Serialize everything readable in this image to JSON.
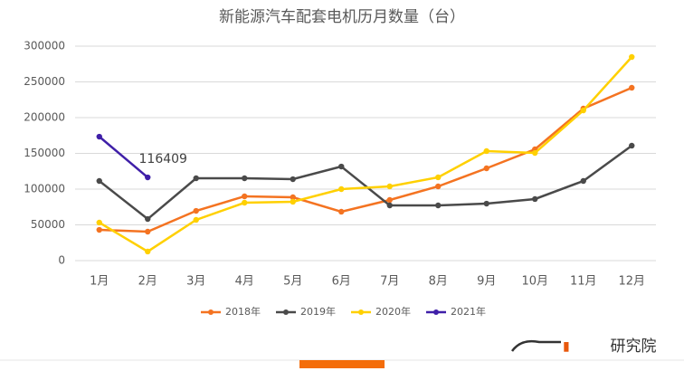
{
  "chart_data": {
    "type": "line",
    "title": "新能源汽车配套电机历月数量（台）",
    "categories": [
      "1月",
      "2月",
      "3月",
      "4月",
      "5月",
      "6月",
      "7月",
      "8月",
      "9月",
      "10月",
      "11月",
      "12月"
    ],
    "series": [
      {
        "name": "2018年",
        "color": "#f47321",
        "values": [
          43000,
          40500,
          69600,
          89900,
          88600,
          68400,
          84800,
          103800,
          129100,
          155700,
          212700,
          241800
        ]
      },
      {
        "name": "2019年",
        "color": "#4a4a4a",
        "values": [
          111400,
          58200,
          115200,
          115200,
          113900,
          131600,
          77200,
          77200,
          79700,
          86100,
          111400,
          160800
        ]
      },
      {
        "name": "2020年",
        "color": "#ffd000",
        "values": [
          53200,
          12700,
          57000,
          81000,
          82300,
          100000,
          103800,
          116500,
          153200,
          150600,
          210100,
          284800
        ]
      },
      {
        "name": "2021年",
        "color": "#3f1fa8",
        "values": [
          173400,
          116409,
          null,
          null,
          null,
          null,
          null,
          null,
          null,
          null,
          null,
          null
        ]
      }
    ],
    "ylim": [
      0,
      300000
    ],
    "yticks": [
      0,
      50000,
      100000,
      150000,
      200000,
      250000,
      300000
    ],
    "grid": true,
    "legend": "bottom",
    "brand": "研究院"
  }
}
